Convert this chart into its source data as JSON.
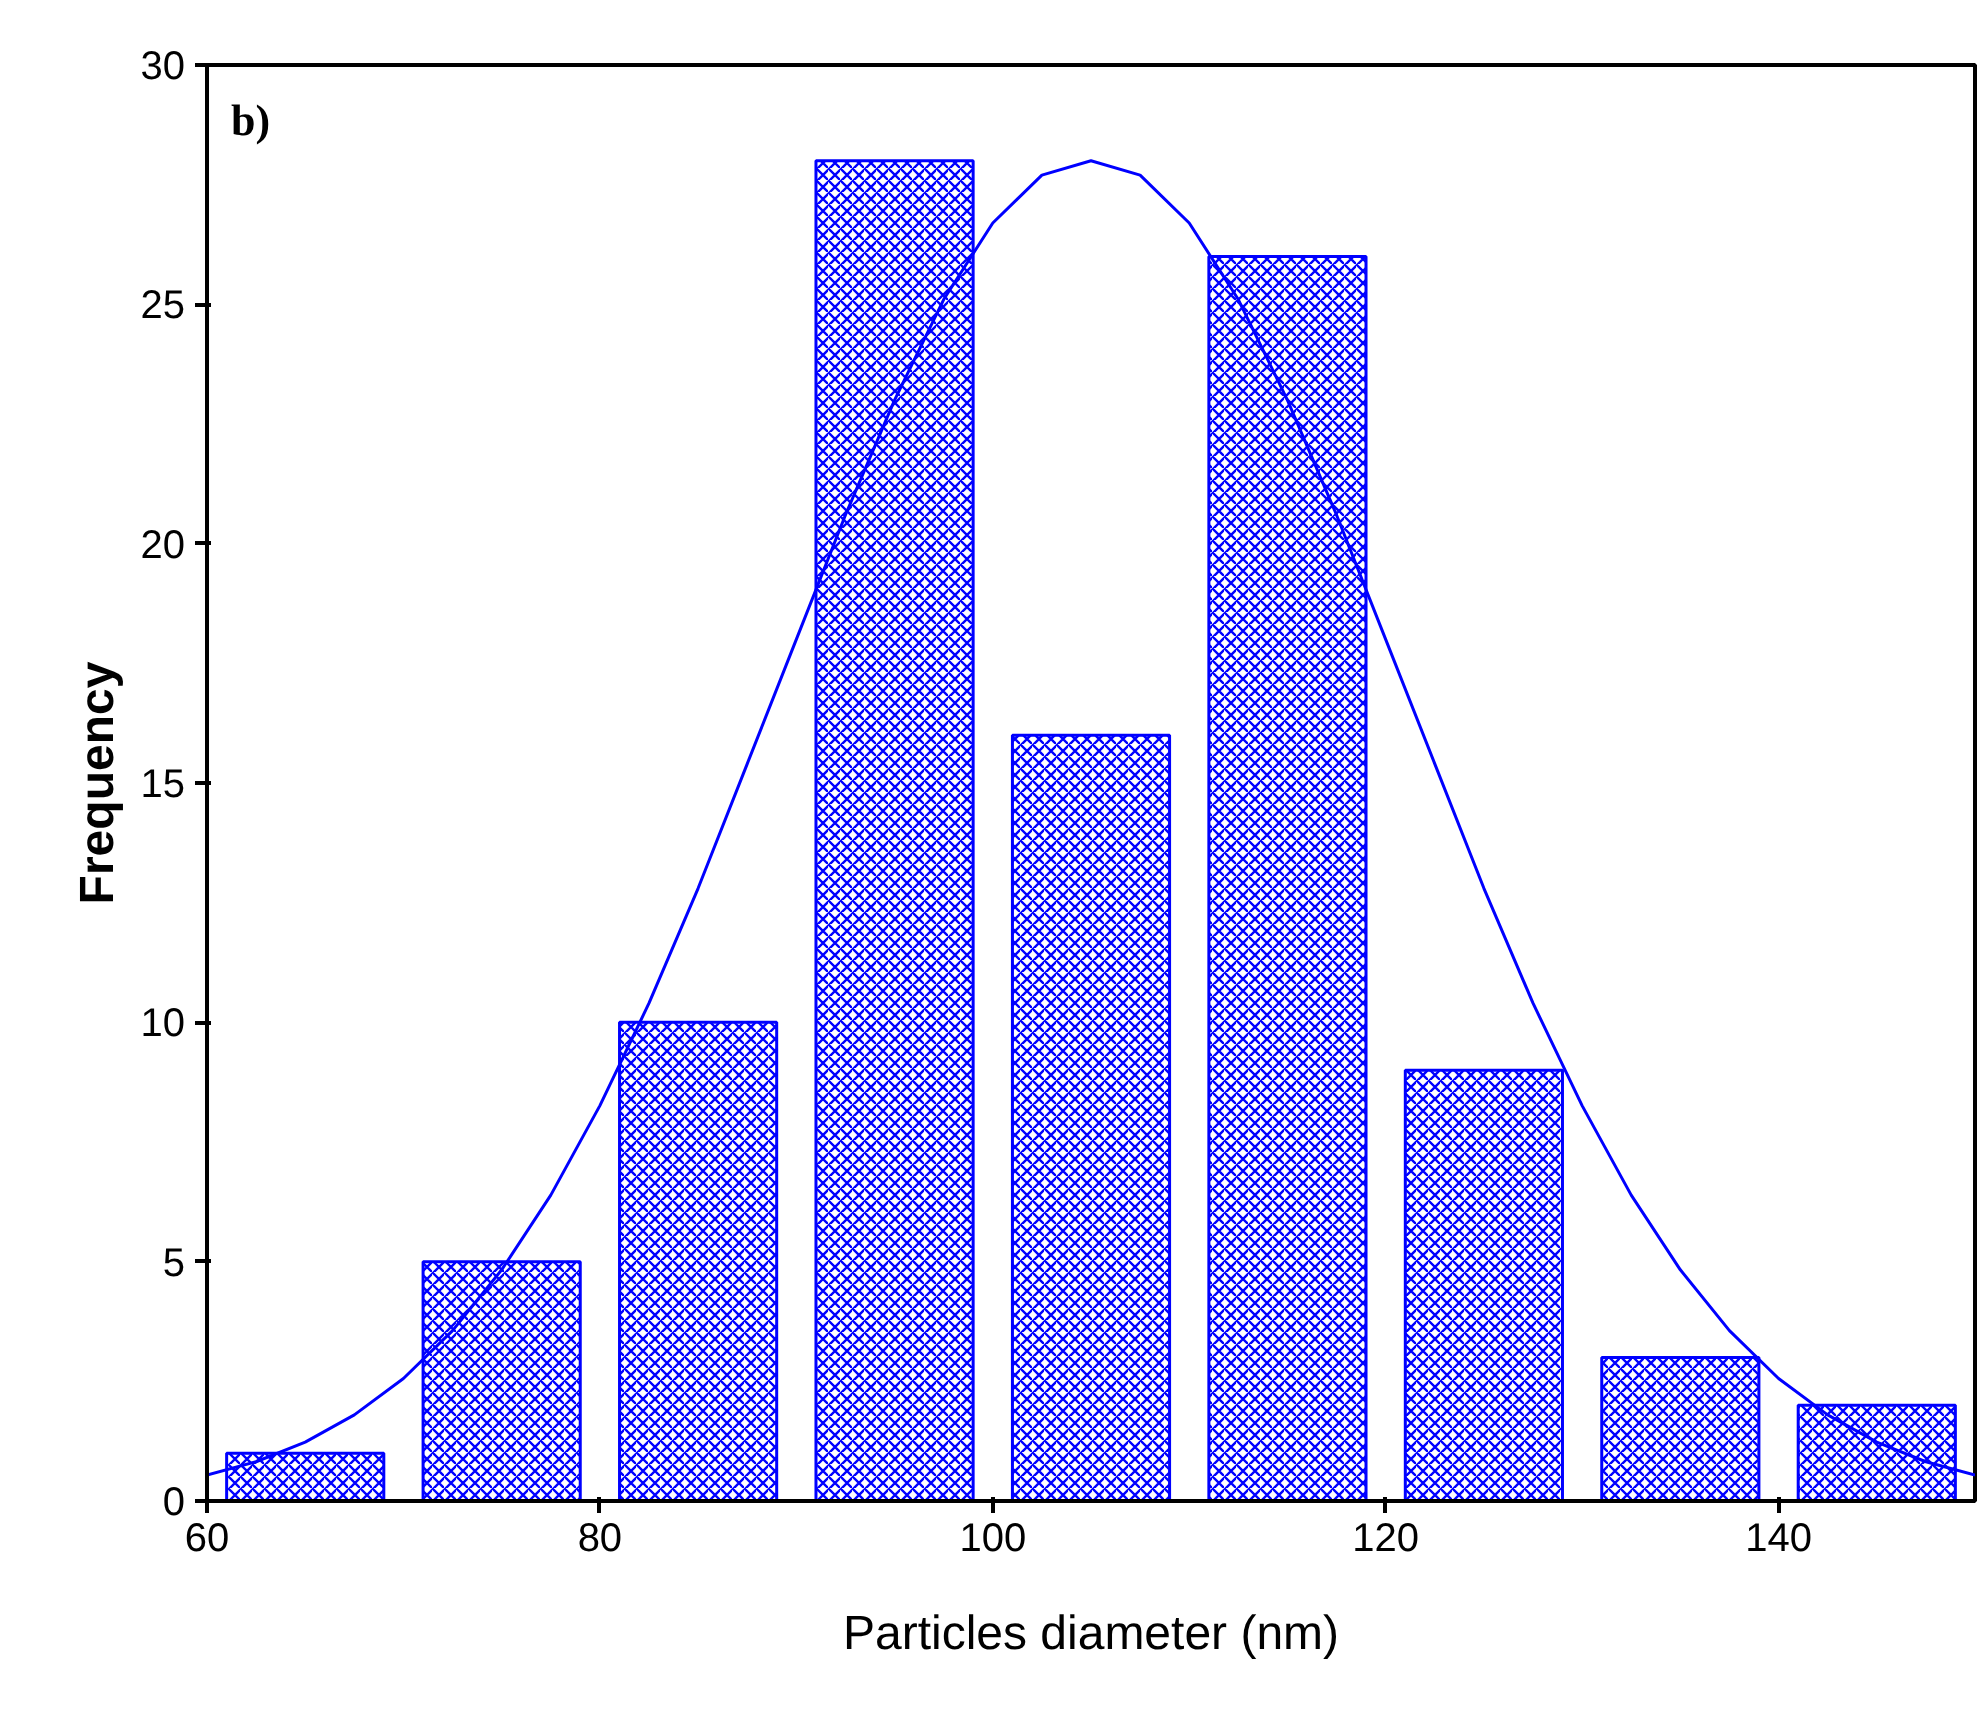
{
  "chart_data": {
    "type": "histogram",
    "xlabel": "Particles diameter (nm)",
    "ylabel": "Frequency",
    "annotations": [
      "b)"
    ],
    "xlim": [
      60,
      150
    ],
    "xticks": [
      60,
      80,
      100,
      120,
      140
    ],
    "ylim": [
      0,
      30
    ],
    "yticks": [
      0,
      5,
      10,
      15,
      20,
      25,
      30
    ],
    "grid": false,
    "series": [
      {
        "color": "#0000ff",
        "bins": [
          60,
          70,
          80,
          90,
          100,
          110,
          120,
          130,
          140,
          150
        ],
        "values": [
          1,
          5,
          10,
          28,
          16,
          26,
          9,
          3,
          2
        ]
      },
      {
        "type": "line",
        "color": "#0000ff",
        "x": [
          60,
          62.5,
          65,
          67.5,
          70,
          72.5,
          75,
          77.5,
          80,
          82.5,
          85,
          87.5,
          90,
          92.5,
          95,
          97.5,
          100,
          102.5,
          105,
          107.5,
          110,
          112.5,
          115,
          117.5,
          120,
          122.5,
          125,
          127.5,
          130,
          132.5,
          135,
          137.5,
          140,
          142.5,
          145,
          147.5,
          150
        ],
        "values": [
          0.54,
          0.82,
          1.23,
          1.8,
          2.56,
          3.56,
          4.83,
          6.39,
          8.26,
          10.4,
          12.8,
          15.4,
          18.0,
          20.6,
          23.0,
          25.1,
          26.7,
          27.7,
          28,
          27.7,
          26.7,
          25.1,
          23.0,
          20.6,
          18.0,
          15.4,
          12.8,
          10.4,
          8.26,
          6.39,
          4.83,
          3.56,
          2.56,
          1.8,
          1.23,
          0.82,
          0.54
        ]
      }
    ]
  }
}
